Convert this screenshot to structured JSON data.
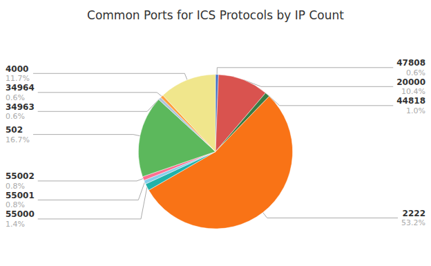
{
  "chart_data": {
    "type": "pie",
    "title": "Common Ports for ICS Protocols by IP Count",
    "categories": [
      "47808",
      "20000",
      "44818",
      "2222",
      "55000",
      "55001",
      "55002",
      "502",
      "34963",
      "34964",
      "4000"
    ],
    "values": [
      0.6,
      10.4,
      1.0,
      53.2,
      1.4,
      0.8,
      0.8,
      16.7,
      0.6,
      0.6,
      11.7
    ],
    "value_labels": [
      "0.6%",
      "10.4%",
      "1.0%",
      "53.2%",
      "1.4%",
      "0.8%",
      "0.8%",
      "16.7%",
      "0.6%",
      "0.6%",
      "11.7%"
    ],
    "colors": [
      "#4472C4",
      "#D9534F",
      "#3A7D44",
      "#F97316",
      "#20B2AA",
      "#87CEEB",
      "#FF6F91",
      "#5CB85C",
      "#B0C4DE",
      "#FFA040",
      "#F0E68C"
    ],
    "data_labels": true
  }
}
